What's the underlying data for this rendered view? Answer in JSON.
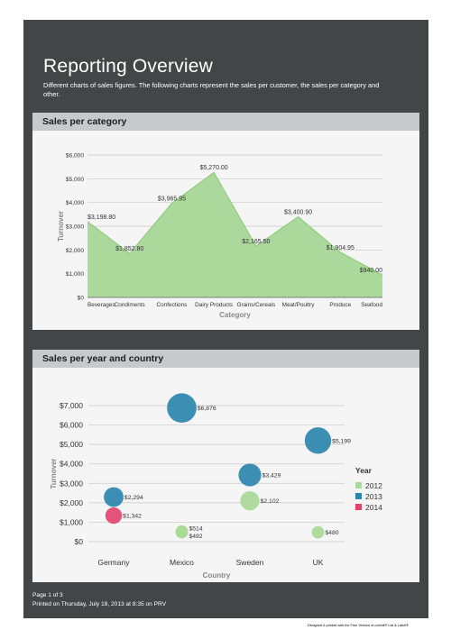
{
  "report": {
    "title": "Reporting Overview",
    "description": "Different charts of sales figures. The following charts represent the sales per customer, the sales per category and other."
  },
  "footer": {
    "page": "Page 1 of 3",
    "printed": "Printed on Thursday, July 18, 2013 at 8:35 on PRV",
    "designed": "Designed & printed with the Free Version of combit® List & Label®"
  },
  "colors": {
    "sheet_background": "#444547",
    "panel_background": "#f5f5f5",
    "panel_header": "#c8c9ca",
    "area_fill": "#abd99c",
    "area_line": "#8dc97a",
    "year_2012": "#a8d996",
    "year_2013": "#2b86ad",
    "year_2014": "#e2446f"
  },
  "panels": {
    "category": {
      "title": "Sales per category"
    },
    "year_country": {
      "title": "Sales per year and country"
    }
  },
  "chart_data": [
    {
      "type": "area",
      "title": "",
      "xlabel": "Category",
      "ylabel": "Turnover",
      "ylim": [
        0,
        6000
      ],
      "yticks": [
        "$0",
        "$1,000",
        "$2,000",
        "$3,000",
        "$4,000",
        "$5,000",
        "$6,000"
      ],
      "categories": [
        "Beverages",
        "Condiments",
        "Confections",
        "Dairy Products",
        "Grains/Cereals",
        "Meat/Poultry",
        "Produce",
        "Seafood"
      ],
      "values": [
        3198.8,
        1852.8,
        3965.95,
        5270.0,
        2165.5,
        3400.9,
        1904.95,
        940.0
      ],
      "value_labels": [
        "$3,198.80",
        "$1,852.80",
        "$3,965.95",
        "$5,270.00",
        "$2,165.50",
        "$3,400.90",
        "$1,904.95",
        "$940.00"
      ],
      "grid": true,
      "legend": "none"
    },
    {
      "type": "scatter",
      "title": "",
      "xlabel": "Country",
      "ylabel": "Turnover",
      "ylim": [
        0,
        7000
      ],
      "yticks": [
        "$0",
        "$1,000",
        "$2,000",
        "$3,000",
        "$4,000",
        "$5,000",
        "$6,000",
        "$7,000"
      ],
      "categories": [
        "Germany",
        "Mexico",
        "Sweden",
        "UK"
      ],
      "legend_title": "Year",
      "legend": "right",
      "grid": true,
      "series": [
        {
          "name": "2012",
          "color": "#a8d996",
          "points": [
            {
              "x": "Mexico",
              "y": 514,
              "label": "$514"
            },
            {
              "x": "Mexico",
              "y": 492,
              "label": "$492"
            },
            {
              "x": "Sweden",
              "y": 2102,
              "label": "$2,102"
            },
            {
              "x": "UK",
              "y": 480,
              "label": "$480"
            }
          ]
        },
        {
          "name": "2013",
          "color": "#2b86ad",
          "points": [
            {
              "x": "Germany",
              "y": 2294,
              "label": "$2,294"
            },
            {
              "x": "Mexico",
              "y": 6876,
              "label": "$6,876"
            },
            {
              "x": "Sweden",
              "y": 3429,
              "label": "$3,429"
            },
            {
              "x": "UK",
              "y": 5199,
              "label": "$5,199"
            }
          ]
        },
        {
          "name": "2014",
          "color": "#e2446f",
          "points": [
            {
              "x": "Germany",
              "y": 1342,
              "label": "$1,342"
            }
          ]
        }
      ]
    }
  ]
}
